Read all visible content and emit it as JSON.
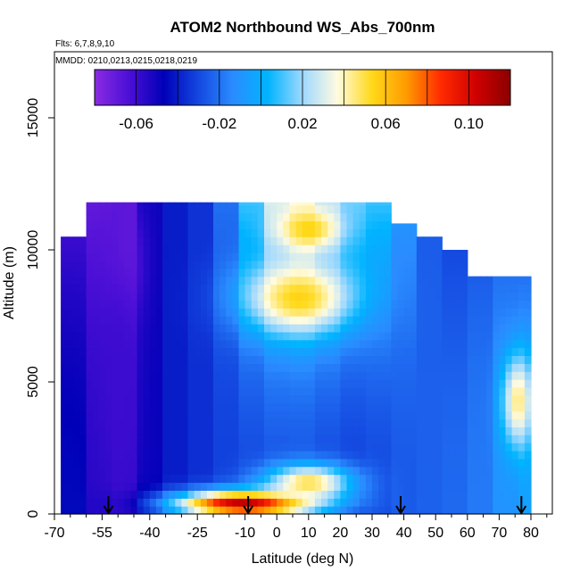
{
  "chart_data": {
    "type": "heatmap",
    "title": "ATOM2 Northbound WS_Abs_700nm",
    "subtitle_flights": "Flts: 6,7,8,9,10",
    "subtitle_dates": "MMDD: 0210,0213,0215,0218,0219",
    "xlabel": "Latitude (deg N)",
    "ylabel": "Altitude (m)",
    "xlim": [
      -70,
      85
    ],
    "ylim": [
      0,
      17500
    ],
    "x_ticks": [
      -70,
      -55,
      -40,
      -25,
      -10,
      0,
      10,
      20,
      30,
      40,
      50,
      60,
      70,
      80
    ],
    "x_minor_ticks": [
      -65,
      -60,
      -50,
      -45,
      -35,
      -30,
      -20,
      -15,
      -5,
      5,
      15,
      25,
      35,
      45,
      55,
      65,
      75,
      85
    ],
    "y_ticks": [
      0,
      5000,
      10000,
      15000
    ],
    "colorbar": {
      "range": [
        -0.08,
        0.12
      ],
      "tick_values": [
        -0.06,
        -0.02,
        0.02,
        0.06,
        0.1
      ],
      "tick_labels": [
        "-0.06",
        "-0.02",
        "0.02",
        "0.06",
        "0.10"
      ],
      "colors": [
        "#8a2be2",
        "#4b0fd6",
        "#0000b8",
        "#1448e0",
        "#2a8cff",
        "#00b4ff",
        "#9ed8ff",
        "#fffbe0",
        "#ffd91a",
        "#ff9a00",
        "#ff2a00",
        "#d00000",
        "#8b0000"
      ]
    },
    "profile_markers_lat": [
      -53,
      -9,
      39,
      77
    ],
    "columns": [
      {
        "lat0": -68,
        "lat1": -60,
        "alt_top": 10500,
        "base": -0.045,
        "top": -0.06
      },
      {
        "lat0": -60,
        "lat1": -52,
        "alt_top": 11800,
        "base": -0.055,
        "top": -0.07
      },
      {
        "lat0": -52,
        "lat1": -44,
        "alt_top": 11800,
        "base": -0.058,
        "top": -0.068
      },
      {
        "lat0": -44,
        "lat1": -36,
        "alt_top": 11800,
        "base": -0.048,
        "top": -0.05
      },
      {
        "lat0": -36,
        "lat1": -28,
        "alt_top": 11800,
        "base": -0.04,
        "top": -0.04
      },
      {
        "lat0": -28,
        "lat1": -20,
        "alt_top": 11800,
        "base": -0.036,
        "top": -0.035
      },
      {
        "lat0": -20,
        "lat1": -12,
        "alt_top": 11800,
        "base": -0.032,
        "top": -0.02
      },
      {
        "lat0": -12,
        "lat1": -4,
        "alt_top": 11800,
        "base": -0.03,
        "top": 0.01
      },
      {
        "lat0": -4,
        "lat1": 4,
        "alt_top": 11800,
        "base": -0.028,
        "top": 0.03
      },
      {
        "lat0": 4,
        "lat1": 12,
        "alt_top": 11800,
        "base": -0.028,
        "top": 0.035
      },
      {
        "lat0": 12,
        "lat1": 20,
        "alt_top": 11800,
        "base": -0.03,
        "top": 0.025
      },
      {
        "lat0": 20,
        "lat1": 28,
        "alt_top": 11800,
        "base": -0.032,
        "top": 0.015
      },
      {
        "lat0": 28,
        "lat1": 36,
        "alt_top": 11800,
        "base": -0.03,
        "top": 0.01
      },
      {
        "lat0": 36,
        "lat1": 44,
        "alt_top": 11000,
        "base": -0.026,
        "top": -0.01
      },
      {
        "lat0": 44,
        "lat1": 52,
        "alt_top": 10500,
        "base": -0.024,
        "top": -0.025
      },
      {
        "lat0": 52,
        "lat1": 60,
        "alt_top": 10000,
        "base": -0.022,
        "top": -0.03
      },
      {
        "lat0": 60,
        "lat1": 68,
        "alt_top": 9000,
        "base": -0.018,
        "top": -0.025
      },
      {
        "lat0": 68,
        "lat1": 76,
        "alt_top": 9000,
        "base": -0.01,
        "top": -0.02
      },
      {
        "lat0": 76,
        "lat1": 80,
        "alt_top": 9000,
        "base": -0.005,
        "top": -0.02
      }
    ],
    "features": [
      {
        "lat_center": -10,
        "alt_center": 400,
        "lat_halfwidth": 22,
        "alt_halfwidth": 500,
        "value": 0.11
      },
      {
        "lat_center": 10,
        "alt_center": 1200,
        "lat_halfwidth": 14,
        "alt_halfwidth": 700,
        "value": 0.05
      },
      {
        "lat_center": 7,
        "alt_center": 8200,
        "lat_halfwidth": 17,
        "alt_halfwidth": 1400,
        "value": 0.055
      },
      {
        "lat_center": 10,
        "alt_center": 10800,
        "lat_halfwidth": 10,
        "alt_halfwidth": 800,
        "value": 0.055
      },
      {
        "lat_center": 76,
        "alt_center": 4300,
        "lat_halfwidth": 5,
        "alt_halfwidth": 1800,
        "value": 0.045
      },
      {
        "lat_center": -48,
        "alt_center": 9500,
        "lat_halfwidth": 6,
        "alt_halfwidth": 2200,
        "value": -0.072
      },
      {
        "lat_center": -50,
        "alt_center": 5000,
        "lat_halfwidth": 7,
        "alt_halfwidth": 5000,
        "value": -0.06
      }
    ],
    "grid": false,
    "legend": "top colorbar"
  }
}
